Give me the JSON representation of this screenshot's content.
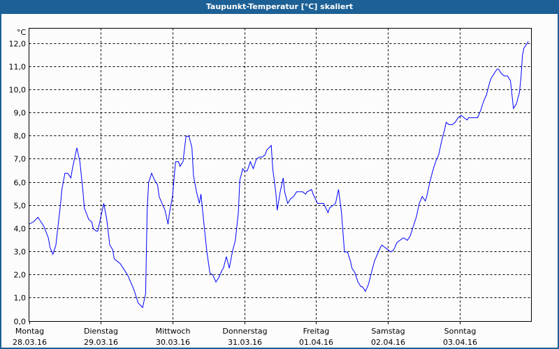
{
  "window": {
    "title": "Taupunkt-Temperatur [°C] skaliert",
    "accent": "#1c6095"
  },
  "chart_data": {
    "type": "line",
    "title": "Taupunkt-Temperatur [°C] skaliert",
    "yunit": "°C",
    "ylim": [
      0,
      12.0
    ],
    "ylabels": [
      "0,0",
      "1,0",
      "2,0",
      "3,0",
      "4,0",
      "5,0",
      "6,0",
      "7,0",
      "8,0",
      "9,0",
      "10,0",
      "11,0",
      "12,0"
    ],
    "xlim": [
      "2016-03-28T00:00",
      "2016-04-04T00:00"
    ],
    "xlabels": [
      {
        "day": "Montag",
        "date": "28.03.16"
      },
      {
        "day": "Dienstag",
        "date": "29.03.16"
      },
      {
        "day": "Mittwoch",
        "date": "30.03.16"
      },
      {
        "day": "Donnerstag",
        "date": "31.03.16"
      },
      {
        "day": "Freitag",
        "date": "01.04.16"
      },
      {
        "day": "Samstag",
        "date": "02.04.16"
      },
      {
        "day": "Sonntag",
        "date": "03.04.16"
      }
    ],
    "grid": true,
    "line_color": "#0000ff",
    "points": [
      [
        "2016-03-28T00:00",
        4.2
      ],
      [
        "2016-03-28T01:30",
        4.3
      ],
      [
        "2016-03-28T03:00",
        4.5
      ],
      [
        "2016-03-28T03:30",
        4.4
      ],
      [
        "2016-03-28T05:00",
        4.1
      ],
      [
        "2016-03-28T06:30",
        3.6
      ],
      [
        "2016-03-28T07:00",
        3.2
      ],
      [
        "2016-03-28T08:00",
        2.9
      ],
      [
        "2016-03-28T09:00",
        3.3
      ],
      [
        "2016-03-28T09:30",
        3.9
      ],
      [
        "2016-03-28T10:30",
        5.0
      ],
      [
        "2016-03-28T11:00",
        5.7
      ],
      [
        "2016-03-28T12:00",
        6.4
      ],
      [
        "2016-03-28T13:00",
        6.4
      ],
      [
        "2016-03-28T14:00",
        6.2
      ],
      [
        "2016-03-28T14:30",
        6.6
      ],
      [
        "2016-03-28T16:00",
        7.5
      ],
      [
        "2016-03-28T17:00",
        6.9
      ],
      [
        "2016-03-28T18:00",
        5.7
      ],
      [
        "2016-03-28T18:30",
        4.9
      ],
      [
        "2016-03-28T20:00",
        4.4
      ],
      [
        "2016-03-28T21:00",
        4.3
      ],
      [
        "2016-03-28T21:30",
        4.0
      ],
      [
        "2016-03-28T22:30",
        3.9
      ],
      [
        "2016-03-28T23:00",
        3.9
      ],
      [
        "2016-03-29T00:00",
        4.5
      ],
      [
        "2016-03-29T01:00",
        5.1
      ],
      [
        "2016-03-29T02:00",
        4.4
      ],
      [
        "2016-03-29T03:00",
        3.3
      ],
      [
        "2016-03-29T04:00",
        3.1
      ],
      [
        "2016-03-29T04:30",
        2.7
      ],
      [
        "2016-03-29T05:30",
        2.6
      ],
      [
        "2016-03-29T06:30",
        2.5
      ],
      [
        "2016-03-29T07:30",
        2.3
      ],
      [
        "2016-03-29T09:00",
        2.0
      ],
      [
        "2016-03-29T10:00",
        1.7
      ],
      [
        "2016-03-29T11:00",
        1.4
      ],
      [
        "2016-03-29T12:00",
        1.0
      ],
      [
        "2016-03-29T12:30",
        0.8
      ],
      [
        "2016-03-29T14:00",
        0.6
      ],
      [
        "2016-03-29T15:00",
        1.2
      ],
      [
        "2016-03-29T15:30",
        4.8
      ],
      [
        "2016-03-29T16:00",
        6.0
      ],
      [
        "2016-03-29T17:00",
        6.4
      ],
      [
        "2016-03-29T18:00",
        6.1
      ],
      [
        "2016-03-29T19:00",
        5.9
      ],
      [
        "2016-03-29T19:30",
        5.4
      ],
      [
        "2016-03-29T20:30",
        5.1
      ],
      [
        "2016-03-29T21:30",
        4.8
      ],
      [
        "2016-03-29T22:30",
        4.2
      ],
      [
        "2016-03-29T23:00",
        4.7
      ],
      [
        "2016-03-30T00:00",
        5.4
      ],
      [
        "2016-03-30T01:00",
        6.9
      ],
      [
        "2016-03-30T02:00",
        6.9
      ],
      [
        "2016-03-30T02:30",
        6.7
      ],
      [
        "2016-03-30T03:30",
        6.9
      ],
      [
        "2016-03-30T04:30",
        8.0
      ],
      [
        "2016-03-30T05:30",
        8.0
      ],
      [
        "2016-03-30T06:30",
        7.5
      ],
      [
        "2016-03-30T07:00",
        6.3
      ],
      [
        "2016-03-30T08:00",
        5.6
      ],
      [
        "2016-03-30T09:00",
        5.1
      ],
      [
        "2016-03-30T09:30",
        5.5
      ],
      [
        "2016-03-30T10:30",
        4.2
      ],
      [
        "2016-03-30T11:30",
        3.0
      ],
      [
        "2016-03-30T12:30",
        2.1
      ],
      [
        "2016-03-30T13:30",
        2.0
      ],
      [
        "2016-03-30T14:30",
        1.7
      ],
      [
        "2016-03-30T15:30",
        1.9
      ],
      [
        "2016-03-30T16:30",
        2.2
      ],
      [
        "2016-03-30T17:00",
        2.3
      ],
      [
        "2016-03-30T18:00",
        2.8
      ],
      [
        "2016-03-30T19:00",
        2.3
      ],
      [
        "2016-03-30T20:00",
        3.0
      ],
      [
        "2016-03-30T21:00",
        3.5
      ],
      [
        "2016-03-30T22:00",
        4.7
      ],
      [
        "2016-03-30T22:30",
        6.1
      ],
      [
        "2016-03-30T23:30",
        6.6
      ],
      [
        "2016-03-31T00:00",
        6.5
      ],
      [
        "2016-03-31T01:00",
        6.5
      ],
      [
        "2016-03-31T02:00",
        6.9
      ],
      [
        "2016-03-31T03:00",
        6.6
      ],
      [
        "2016-03-31T04:00",
        7.0
      ],
      [
        "2016-03-31T05:00",
        7.1
      ],
      [
        "2016-03-31T06:00",
        7.1
      ],
      [
        "2016-03-31T07:00",
        7.2
      ],
      [
        "2016-03-31T07:30",
        7.4
      ],
      [
        "2016-03-31T09:00",
        7.6
      ],
      [
        "2016-03-31T09:30",
        6.6
      ],
      [
        "2016-03-31T10:30",
        5.6
      ],
      [
        "2016-03-31T11:00",
        4.8
      ],
      [
        "2016-03-31T12:00",
        5.6
      ],
      [
        "2016-03-31T13:00",
        6.2
      ],
      [
        "2016-03-31T13:30",
        5.6
      ],
      [
        "2016-03-31T14:30",
        5.1
      ],
      [
        "2016-03-31T15:30",
        5.3
      ],
      [
        "2016-03-31T16:30",
        5.4
      ],
      [
        "2016-03-31T17:30",
        5.6
      ],
      [
        "2016-03-31T18:30",
        5.6
      ],
      [
        "2016-03-31T19:30",
        5.6
      ],
      [
        "2016-03-31T20:30",
        5.5
      ],
      [
        "2016-03-31T21:00",
        5.6
      ],
      [
        "2016-03-31T22:30",
        5.7
      ],
      [
        "2016-03-31T23:00",
        5.5
      ],
      [
        "2016-04-01T00:30",
        5.1
      ],
      [
        "2016-04-01T01:00",
        5.1
      ],
      [
        "2016-04-01T02:30",
        5.1
      ],
      [
        "2016-04-01T04:00",
        4.7
      ],
      [
        "2016-04-01T04:30",
        4.9
      ],
      [
        "2016-04-01T06:30",
        5.1
      ],
      [
        "2016-04-01T07:30",
        5.7
      ],
      [
        "2016-04-01T08:30",
        4.7
      ],
      [
        "2016-04-01T09:30",
        3.0
      ],
      [
        "2016-04-01T10:30",
        3.0
      ],
      [
        "2016-04-01T11:30",
        2.6
      ],
      [
        "2016-04-01T12:00",
        2.3
      ],
      [
        "2016-04-01T13:00",
        2.1
      ],
      [
        "2016-04-01T14:00",
        1.7
      ],
      [
        "2016-04-01T15:00",
        1.5
      ],
      [
        "2016-04-01T15:30",
        1.5
      ],
      [
        "2016-04-01T16:30",
        1.3
      ],
      [
        "2016-04-01T17:30",
        1.6
      ],
      [
        "2016-04-01T18:30",
        2.1
      ],
      [
        "2016-04-01T19:30",
        2.6
      ],
      [
        "2016-04-01T20:30",
        2.9
      ],
      [
        "2016-04-01T21:30",
        3.2
      ],
      [
        "2016-04-01T22:00",
        3.3
      ],
      [
        "2016-04-01T23:00",
        3.2
      ],
      [
        "2016-04-02T00:00",
        3.1
      ],
      [
        "2016-04-02T01:00",
        3.0
      ],
      [
        "2016-04-02T02:00",
        3.1
      ],
      [
        "2016-04-02T03:00",
        3.4
      ],
      [
        "2016-04-02T04:00",
        3.5
      ],
      [
        "2016-04-02T05:00",
        3.6
      ],
      [
        "2016-04-02T05:30",
        3.6
      ],
      [
        "2016-04-02T06:30",
        3.5
      ],
      [
        "2016-04-02T07:30",
        3.7
      ],
      [
        "2016-04-02T08:30",
        4.1
      ],
      [
        "2016-04-02T09:30",
        4.5
      ],
      [
        "2016-04-02T10:30",
        5.1
      ],
      [
        "2016-04-02T11:30",
        5.4
      ],
      [
        "2016-04-02T12:30",
        5.2
      ],
      [
        "2016-04-02T13:00",
        5.4
      ],
      [
        "2016-04-02T14:00",
        6.0
      ],
      [
        "2016-04-02T15:00",
        6.5
      ],
      [
        "2016-04-02T16:00",
        6.9
      ],
      [
        "2016-04-02T17:00",
        7.2
      ],
      [
        "2016-04-02T18:00",
        7.8
      ],
      [
        "2016-04-02T19:00",
        8.3
      ],
      [
        "2016-04-02T19:30",
        8.6
      ],
      [
        "2016-04-02T20:30",
        8.5
      ],
      [
        "2016-04-02T21:30",
        8.5
      ],
      [
        "2016-04-02T22:30",
        8.6
      ],
      [
        "2016-04-02T23:30",
        8.8
      ],
      [
        "2016-04-03T00:30",
        8.9
      ],
      [
        "2016-04-03T01:30",
        8.8
      ],
      [
        "2016-04-03T02:30",
        8.7
      ],
      [
        "2016-04-03T03:00",
        8.8
      ],
      [
        "2016-04-03T04:00",
        8.8
      ],
      [
        "2016-04-03T05:00",
        8.8
      ],
      [
        "2016-04-03T06:00",
        8.8
      ],
      [
        "2016-04-03T07:00",
        9.1
      ],
      [
        "2016-04-03T08:00",
        9.5
      ],
      [
        "2016-04-03T09:00",
        9.8
      ],
      [
        "2016-04-03T10:00",
        10.3
      ],
      [
        "2016-04-03T10:30",
        10.5
      ],
      [
        "2016-04-03T11:30",
        10.7
      ],
      [
        "2016-04-03T12:30",
        10.9
      ],
      [
        "2016-04-03T13:00",
        10.9
      ],
      [
        "2016-04-03T14:00",
        10.7
      ],
      [
        "2016-04-03T15:00",
        10.6
      ],
      [
        "2016-04-03T16:00",
        10.6
      ],
      [
        "2016-04-03T17:00",
        10.4
      ],
      [
        "2016-04-03T17:30",
        9.8
      ],
      [
        "2016-04-03T18:00",
        9.2
      ],
      [
        "2016-04-03T19:00",
        9.4
      ],
      [
        "2016-04-03T20:00",
        9.9
      ],
      [
        "2016-04-03T20:30",
        10.5
      ],
      [
        "2016-04-03T21:00",
        11.5
      ],
      [
        "2016-04-03T21:30",
        11.8
      ],
      [
        "2016-04-03T22:30",
        12.0
      ],
      [
        "2016-04-03T23:00",
        12.1
      ]
    ]
  }
}
